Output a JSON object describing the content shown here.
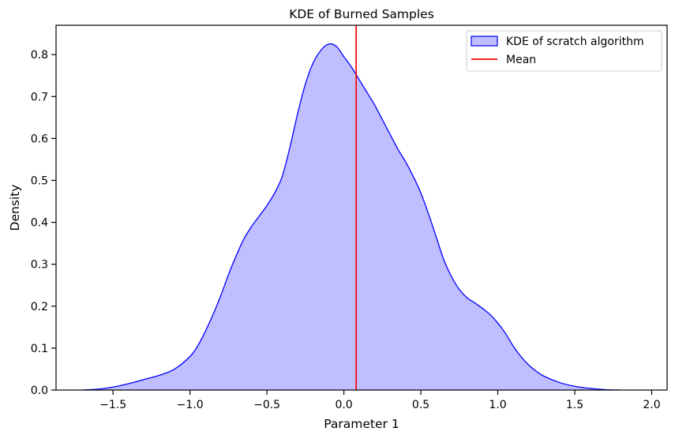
{
  "chart_data": {
    "type": "area",
    "title": "KDE of Burned Samples",
    "xlabel": "Parameter 1",
    "ylabel": "Density",
    "xlim": [
      -1.87,
      2.1
    ],
    "ylim": [
      0,
      0.87
    ],
    "x_ticks": [
      -1.5,
      -1.0,
      -0.5,
      0.0,
      0.5,
      1.0,
      1.5,
      2.0
    ],
    "x_tick_labels": [
      "−1.5",
      "−1.0",
      "−0.5",
      "0.0",
      "0.5",
      "1.0",
      "1.5",
      "2.0"
    ],
    "y_ticks": [
      0.0,
      0.1,
      0.2,
      0.3,
      0.4,
      0.5,
      0.6,
      0.7,
      0.8
    ],
    "y_tick_labels": [
      "0.0",
      "0.1",
      "0.2",
      "0.3",
      "0.4",
      "0.5",
      "0.6",
      "0.7",
      "0.8"
    ],
    "grid": false,
    "legend_position": "top-right",
    "series": [
      {
        "name": "KDE of scratch algorithm",
        "kind": "kde-fill",
        "line_color": "#0000ff",
        "fill_color": "#bfbfff",
        "x": [
          -1.7,
          -1.6,
          -1.5,
          -1.4,
          -1.3,
          -1.2,
          -1.1,
          -1.0,
          -0.95,
          -0.9,
          -0.85,
          -0.8,
          -0.75,
          -0.7,
          -0.65,
          -0.6,
          -0.55,
          -0.5,
          -0.45,
          -0.4,
          -0.35,
          -0.3,
          -0.25,
          -0.2,
          -0.15,
          -0.1,
          -0.05,
          0.0,
          0.05,
          0.1,
          0.15,
          0.2,
          0.25,
          0.3,
          0.35,
          0.4,
          0.45,
          0.5,
          0.55,
          0.6,
          0.65,
          0.7,
          0.75,
          0.8,
          0.85,
          0.9,
          0.95,
          1.0,
          1.05,
          1.1,
          1.15,
          1.2,
          1.25,
          1.3,
          1.4,
          1.5,
          1.6,
          1.7,
          1.8
        ],
        "y": [
          0.0,
          0.002,
          0.007,
          0.015,
          0.025,
          0.035,
          0.05,
          0.08,
          0.105,
          0.14,
          0.18,
          0.225,
          0.275,
          0.32,
          0.36,
          0.39,
          0.415,
          0.44,
          0.47,
          0.51,
          0.58,
          0.66,
          0.73,
          0.78,
          0.81,
          0.825,
          0.82,
          0.795,
          0.77,
          0.74,
          0.71,
          0.68,
          0.645,
          0.61,
          0.575,
          0.545,
          0.51,
          0.47,
          0.42,
          0.365,
          0.31,
          0.27,
          0.24,
          0.22,
          0.208,
          0.195,
          0.18,
          0.16,
          0.135,
          0.105,
          0.08,
          0.06,
          0.045,
          0.033,
          0.018,
          0.009,
          0.004,
          0.001,
          0.0
        ]
      },
      {
        "name": "Mean",
        "kind": "vline",
        "line_color": "#ff0000",
        "x_value": 0.08
      }
    ]
  }
}
